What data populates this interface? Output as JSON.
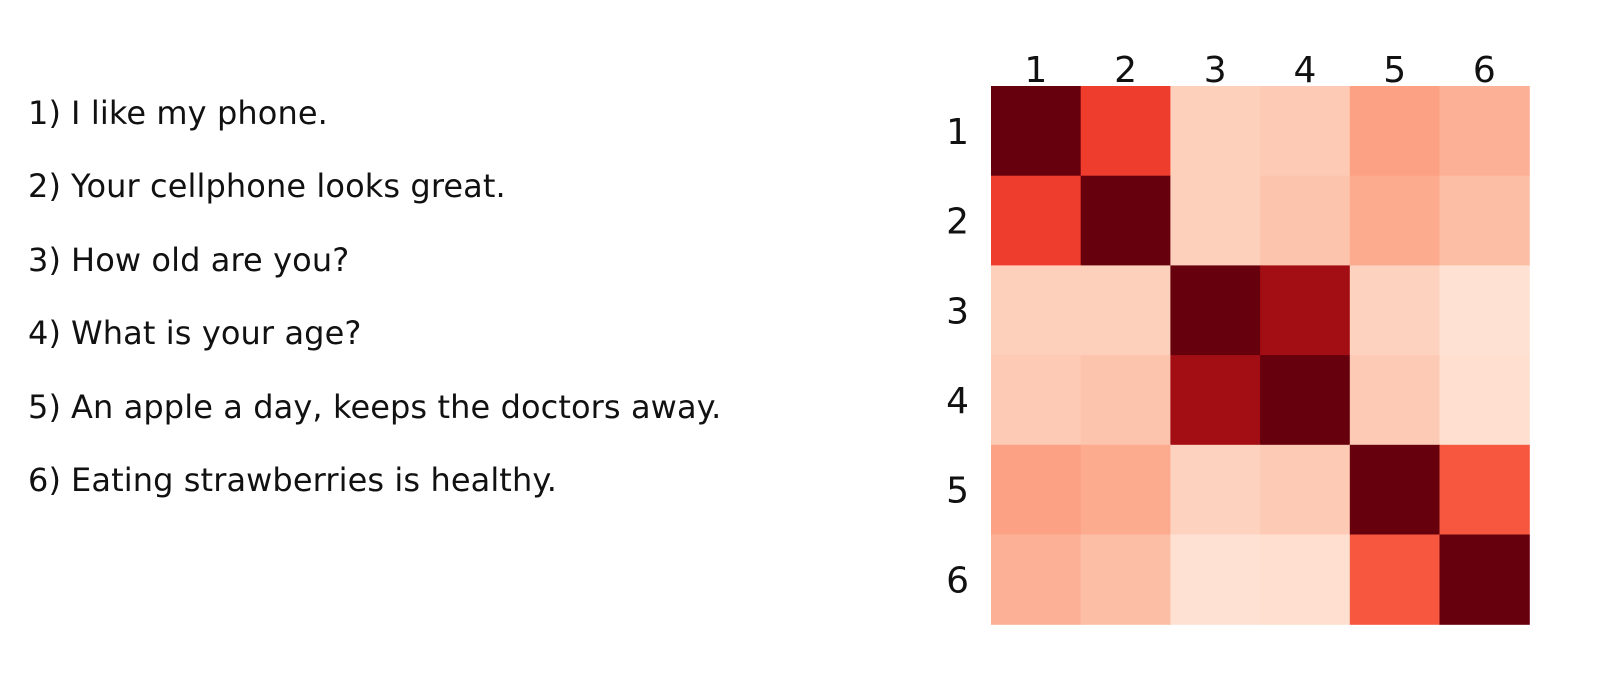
{
  "sentences": [
    {
      "num": "1)",
      "text": "I like my phone."
    },
    {
      "num": "2)",
      "text": "Your cellphone looks great."
    },
    {
      "num": "3)",
      "text": "How old are you?"
    },
    {
      "num": "4)",
      "text": "What is your age?"
    },
    {
      "num": "5)",
      "text": "An apple a day, keeps the doctors away."
    },
    {
      "num": "6)",
      "text": "Eating strawberries is healthy."
    }
  ],
  "chart_data": {
    "type": "heatmap",
    "x_labels": [
      "1",
      "2",
      "3",
      "4",
      "5",
      "6"
    ],
    "y_labels": [
      "1",
      "2",
      "3",
      "4",
      "5",
      "6"
    ],
    "x_label_position": "top",
    "colormap": "Reds",
    "grid": false,
    "values": [
      [
        1.0,
        0.62,
        0.18,
        0.2,
        0.33,
        0.28
      ],
      [
        0.62,
        1.0,
        0.18,
        0.22,
        0.3,
        0.24
      ],
      [
        0.18,
        0.18,
        1.0,
        0.88,
        0.17,
        0.12
      ],
      [
        0.2,
        0.22,
        0.88,
        1.0,
        0.2,
        0.13
      ],
      [
        0.33,
        0.3,
        0.17,
        0.2,
        1.0,
        0.55
      ],
      [
        0.28,
        0.24,
        0.12,
        0.13,
        0.55,
        1.0
      ]
    ]
  }
}
